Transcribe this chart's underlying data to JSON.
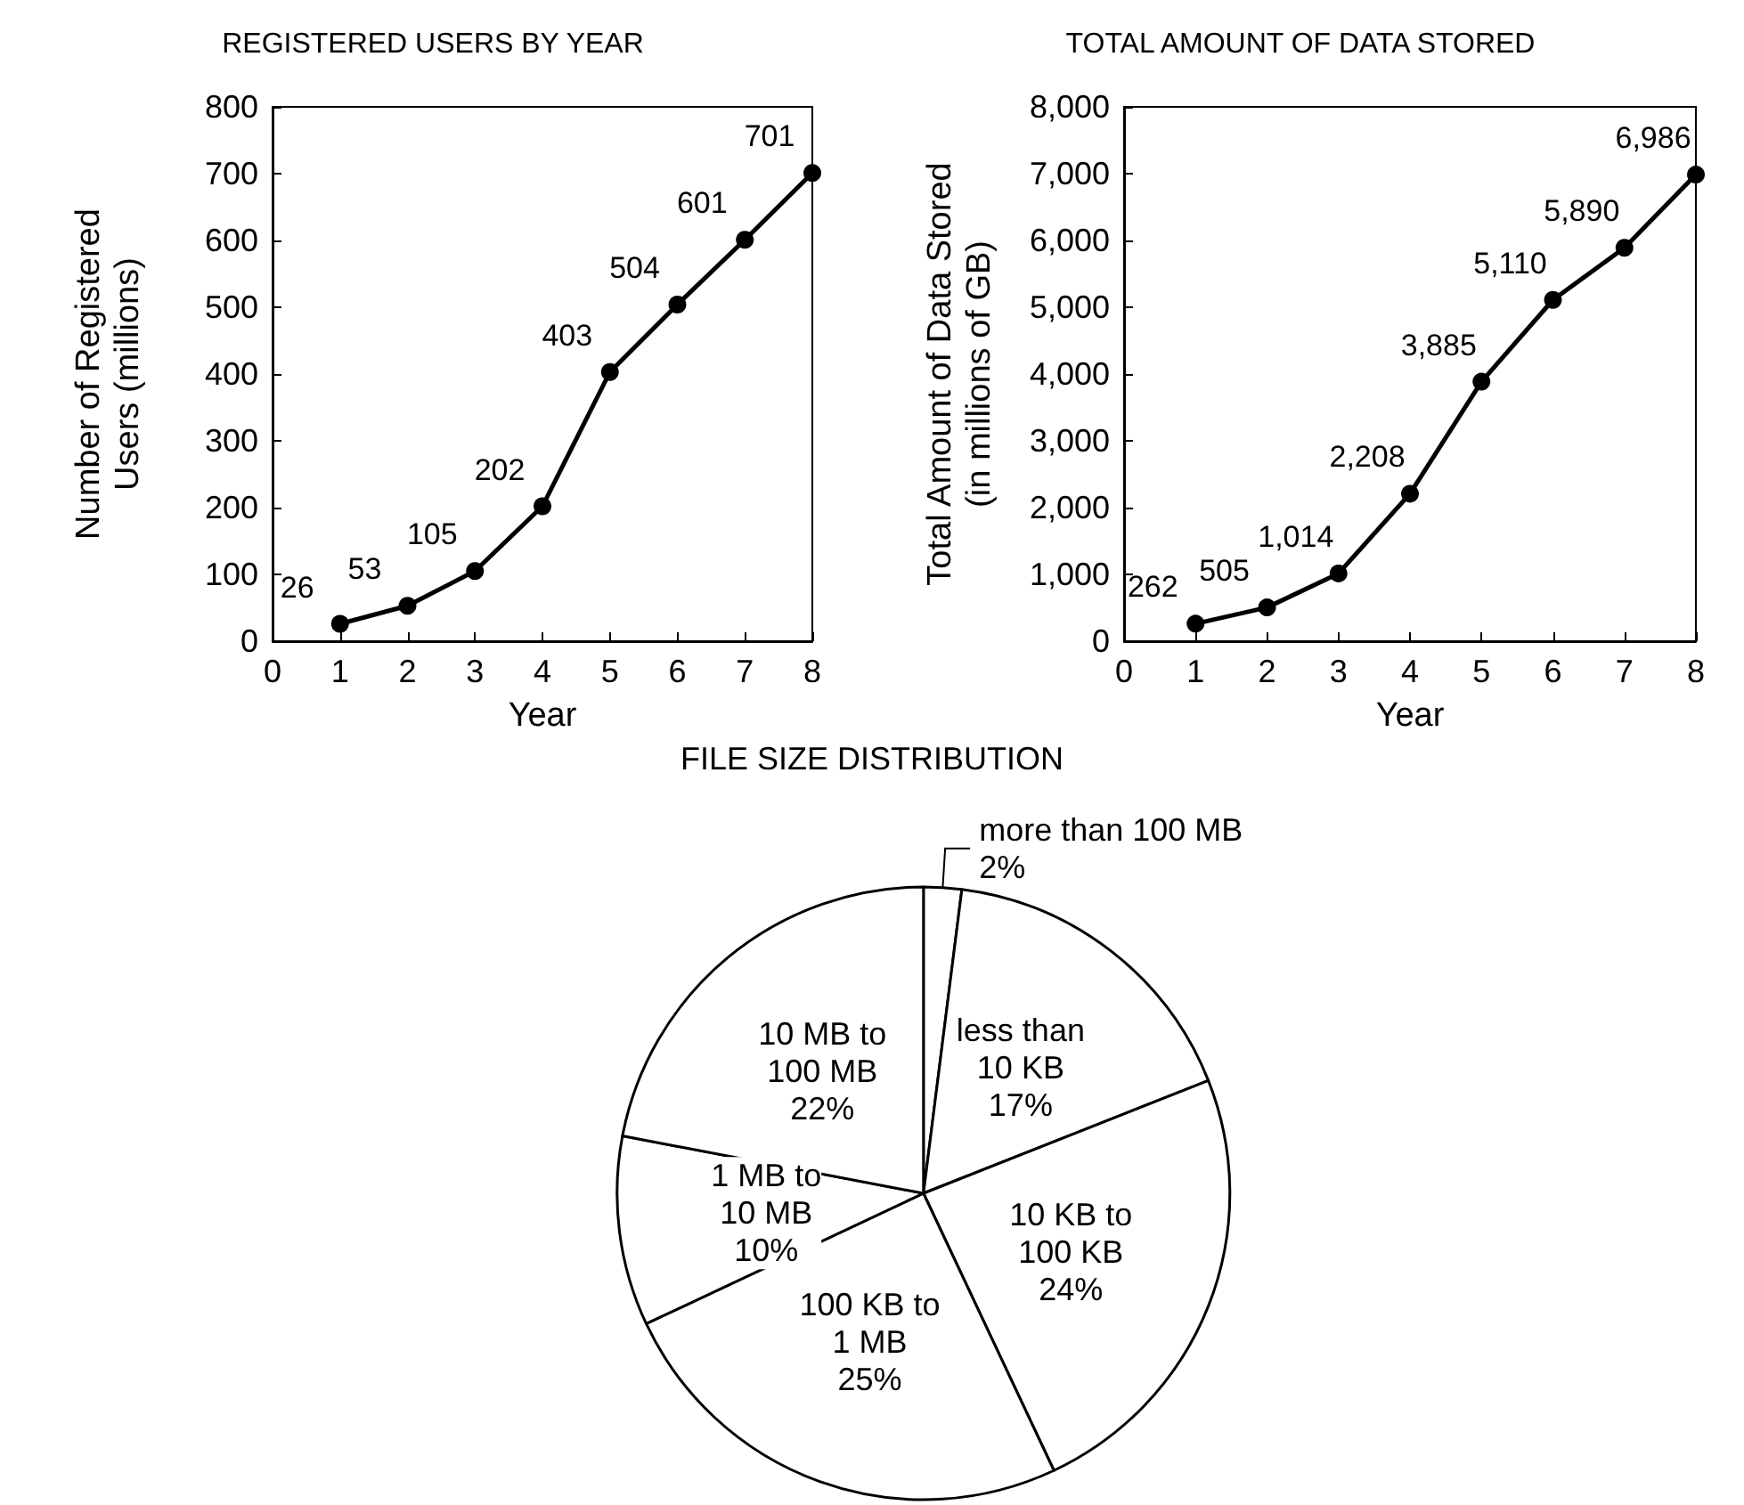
{
  "chart_data": [
    {
      "type": "line",
      "title": "REGISTERED USERS BY YEAR",
      "xlabel": "Year",
      "ylabel": "Number of Registered Users (millions)",
      "x": [
        1,
        2,
        3,
        4,
        5,
        6,
        7,
        8
      ],
      "series": [
        {
          "color": "#000000",
          "values": [
            26,
            53,
            105,
            202,
            403,
            504,
            601,
            701
          ]
        }
      ],
      "xlim": [
        0,
        8
      ],
      "xticks": [
        0,
        1,
        2,
        3,
        4,
        5,
        6,
        7,
        8
      ],
      "ylim": [
        0,
        800
      ],
      "yticks": [
        0,
        100,
        200,
        300,
        400,
        500,
        600,
        700,
        800
      ],
      "data_labels": true,
      "marker": "circle",
      "line_style": "solid",
      "grid": false
    },
    {
      "type": "line",
      "title": "TOTAL AMOUNT OF DATA STORED",
      "xlabel": "Year",
      "ylabel": "Total Amount of Data Stored (in millions of GB)",
      "x": [
        1,
        2,
        3,
        4,
        5,
        6,
        7,
        8
      ],
      "series": [
        {
          "color": "#000000",
          "values": [
            262,
            505,
            1014,
            2208,
            3885,
            5110,
            5890,
            6986
          ],
          "value_labels": [
            "262",
            "505",
            "1,014",
            "2,208",
            "3,885",
            "5,110",
            "5,890",
            "6,986"
          ]
        }
      ],
      "xlim": [
        0,
        8
      ],
      "xticks": [
        0,
        1,
        2,
        3,
        4,
        5,
        6,
        7,
        8
      ],
      "ylim": [
        0,
        8000
      ],
      "yticks": [
        0,
        {
          "value": 1000,
          "label": "1,000"
        },
        {
          "value": 2000,
          "label": "2,000"
        },
        {
          "value": 3000,
          "label": "3,000"
        },
        {
          "value": 4000,
          "label": "4,000"
        },
        {
          "value": 5000,
          "label": "5,000"
        },
        {
          "value": 6000,
          "label": "6,000"
        },
        {
          "value": 7000,
          "label": "7,000"
        },
        {
          "value": 8000,
          "label": "8,000"
        }
      ],
      "marker": "circle",
      "line_style": "solid",
      "grid": false
    },
    {
      "type": "pie",
      "title": "FILE SIZE DISTRIBUTION",
      "categories": [
        "more than 100 MB",
        "less than 10 KB",
        "10 KB to 100 KB",
        "100 KB to 1 MB",
        "1 MB to 10 MB",
        "10 MB to 100 MB"
      ],
      "values": [
        2,
        17,
        24,
        25,
        10,
        22
      ],
      "value_labels": [
        "2%",
        "17%",
        "24%",
        "25%",
        "10%",
        "22%"
      ],
      "colors": [
        "#ffffff",
        "#ffffff",
        "#ffffff",
        "#ffffff",
        "#ffffff",
        "#ffffff"
      ]
    }
  ]
}
